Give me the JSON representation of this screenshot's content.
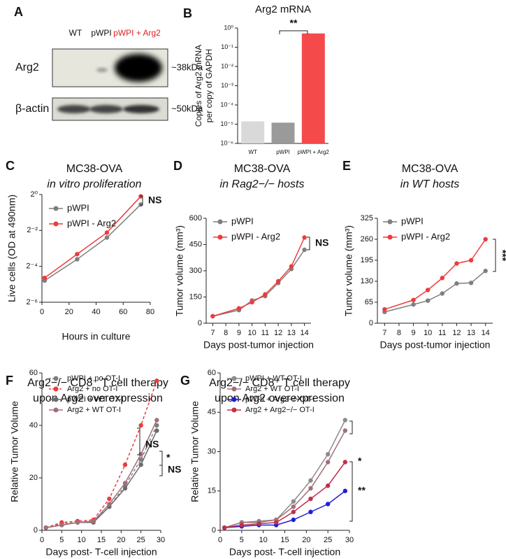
{
  "blot": {
    "panel": "A",
    "lanes": [
      "WT",
      "pWPI",
      "pWPI + Arg2"
    ],
    "rows": [
      {
        "label": "Arg2",
        "size": "~38kDa"
      },
      {
        "label": "β-actin",
        "size": "~50kDa"
      }
    ]
  },
  "chart_data": [
    {
      "panel": "B",
      "type": "bar",
      "title": [
        "Arg2 mRNA"
      ],
      "ylabel": [
        "Copies of Arg2 mRNA",
        "per copy of GAPDH"
      ],
      "categories": [
        "WT",
        "pWPI",
        "pWPI + Arg2"
      ],
      "values": [
        1.4e-05,
        1.2e-05,
        0.52
      ],
      "colors": [
        "#d9d9d9",
        "#9a9a9a",
        "#f44a4a"
      ],
      "yscale": "log",
      "ylim": [
        1e-06,
        1
      ],
      "yticks": [
        {
          "value": 1e-06,
          "label": "10⁻⁶"
        },
        {
          "value": 1e-05,
          "label": "10⁻⁵"
        },
        {
          "value": 0.0001,
          "label": "10⁻⁴"
        },
        {
          "value": 0.001,
          "label": "10⁻³"
        },
        {
          "value": 0.01,
          "label": "10⁻²"
        },
        {
          "value": 0.1,
          "label": "10⁻¹"
        },
        {
          "value": 1,
          "label": "10⁰"
        }
      ],
      "annotations": [
        "**"
      ]
    },
    {
      "panel": "C",
      "type": "line",
      "title": [
        "MC38-OVA",
        "in vitro proliferation"
      ],
      "xlabel": "Hours in culture",
      "ylabel": [
        "Live cells (OD at 490nm)"
      ],
      "x": [
        2,
        26,
        48,
        73
      ],
      "xlim": [
        0,
        80
      ],
      "xticks": [
        0,
        20,
        40,
        60,
        80
      ],
      "yscale": "log",
      "ylim": [
        0.015625,
        1
      ],
      "yticks": [
        {
          "value": 0.015625,
          "label": "2⁻⁶"
        },
        {
          "value": 0.0625,
          "label": "2⁻⁴"
        },
        {
          "value": 0.25,
          "label": "2⁻²"
        },
        {
          "value": 1,
          "label": "2⁰"
        }
      ],
      "series": [
        {
          "name": "pWPI",
          "color": "#7f7f7f",
          "values": [
            0.036,
            0.082,
            0.19,
            0.68
          ]
        },
        {
          "name": "pWPI - Arg2",
          "color": "#ee3b3b",
          "values": [
            0.04,
            0.1,
            0.23,
            0.93
          ]
        }
      ],
      "annotations": [
        "NS"
      ]
    },
    {
      "panel": "D",
      "type": "line",
      "title": [
        "MC38-OVA",
        "in Rag2−/− hosts"
      ],
      "xlabel": "Days post-tumor injection",
      "ylabel": [
        "Tumor volume (mm³)"
      ],
      "x": [
        7,
        9,
        10,
        11,
        12,
        13,
        14
      ],
      "xlim": [
        6.5,
        14.5
      ],
      "xticks": [
        7,
        8,
        9,
        10,
        11,
        12,
        13,
        14
      ],
      "ylim": [
        0,
        600
      ],
      "yticks": [
        0,
        150,
        300,
        450,
        600
      ],
      "series": [
        {
          "name": "pWPI",
          "color": "#7f7f7f",
          "values": [
            40,
            75,
            130,
            155,
            230,
            310,
            420
          ]
        },
        {
          "name": "pWPI - Arg2",
          "color": "#ee3b3b",
          "values": [
            40,
            85,
            120,
            165,
            240,
            325,
            490
          ]
        }
      ],
      "annotations": [
        "NS"
      ]
    },
    {
      "panel": "E",
      "type": "line",
      "title": [
        "MC38-OVA",
        "in WT hosts"
      ],
      "xlabel": "Days post-tumor injection",
      "ylabel": [
        "Tumor volume (mm³)"
      ],
      "x": [
        7,
        9,
        10,
        11,
        12,
        13,
        14
      ],
      "xlim": [
        6.5,
        14.5
      ],
      "xticks": [
        7,
        8,
        9,
        10,
        11,
        12,
        13,
        14
      ],
      "ylim": [
        0,
        325
      ],
      "yticks": [
        0,
        65,
        130,
        195,
        260,
        325
      ],
      "series": [
        {
          "name": "pWPI",
          "color": "#7f7f7f",
          "values": [
            35,
            58,
            70,
            92,
            123,
            125,
            162
          ]
        },
        {
          "name": "pWPI - Arg2",
          "color": "#ee3b3b",
          "values": [
            43,
            72,
            103,
            140,
            185,
            195,
            260
          ]
        }
      ],
      "annotations": [
        "***"
      ]
    },
    {
      "panel": "F",
      "type": "line",
      "title": [
        "Arg2−/− CD8⁺ T cell therapy",
        "upon Arg2 overexpression"
      ],
      "xlabel": "Days post- T-cell injection",
      "ylabel": [
        "Relative Tumor Volume"
      ],
      "x": [
        1,
        5,
        9,
        13,
        17,
        21,
        25,
        29
      ],
      "xlim": [
        0,
        30
      ],
      "xticks": [
        0,
        5,
        10,
        15,
        20,
        25,
        30
      ],
      "ylim": [
        0,
        60
      ],
      "yticks": [
        0,
        20,
        40,
        60
      ],
      "series": [
        {
          "name": "pWPI + no OT-I",
          "color": "#7f7f7f",
          "dash": true,
          "values": [
            1,
            2.5,
            3,
            3.5,
            9,
            17,
            27,
            40
          ]
        },
        {
          "name": "Arg2 + no OT-I",
          "color": "#ee3b3b",
          "dash": true,
          "values": [
            1,
            3,
            3.5,
            4,
            12,
            25,
            40,
            57
          ]
        },
        {
          "name": "pWPI + WT OT-I",
          "color": "#6b6b6b",
          "values": [
            1,
            2,
            3,
            3,
            9,
            16,
            25,
            38
          ]
        },
        {
          "name": "Arg2  + WT OT-I",
          "color": "#a0707a",
          "values": [
            1,
            2,
            3,
            3.5,
            10,
            18,
            29,
            42
          ]
        }
      ],
      "annotations": [
        "NS",
        "*",
        "NS"
      ]
    },
    {
      "panel": "G",
      "type": "line",
      "title": [
        "Arg2−/− CD8⁺ T cell therapy",
        "upon Arg2 overexpression"
      ],
      "xlabel": "Days post- T-cell injection",
      "ylabel": [
        "Relative Tumor Volume"
      ],
      "x": [
        1,
        5,
        9,
        13,
        17,
        21,
        25,
        29
      ],
      "xlim": [
        0,
        30
      ],
      "xticks": [
        0,
        5,
        10,
        15,
        20,
        25,
        30
      ],
      "ylim": [
        0,
        60
      ],
      "yticks": [
        0,
        15,
        30,
        45,
        60
      ],
      "series": [
        {
          "name": "pWPI + WT OT-I",
          "color": "#8c8c8c",
          "values": [
            1,
            3,
            3.5,
            4,
            11,
            19,
            29,
            42
          ]
        },
        {
          "name": "Arg2  + WT OT-I",
          "color": "#a0707a",
          "values": [
            1,
            3,
            3,
            4,
            9,
            16,
            26,
            38
          ]
        },
        {
          "name": "pWPI + Arg2−/−OT-I",
          "color": "#1f1fd6",
          "values": [
            1,
            1.5,
            2,
            2,
            4,
            7,
            10,
            15
          ]
        },
        {
          "name": "Arg2  + Arg2−/− OT-I",
          "color": "#c0304a",
          "values": [
            1,
            2,
            2.5,
            3,
            7,
            12,
            17,
            26
          ]
        }
      ],
      "annotations": [
        "*",
        "**"
      ]
    }
  ]
}
